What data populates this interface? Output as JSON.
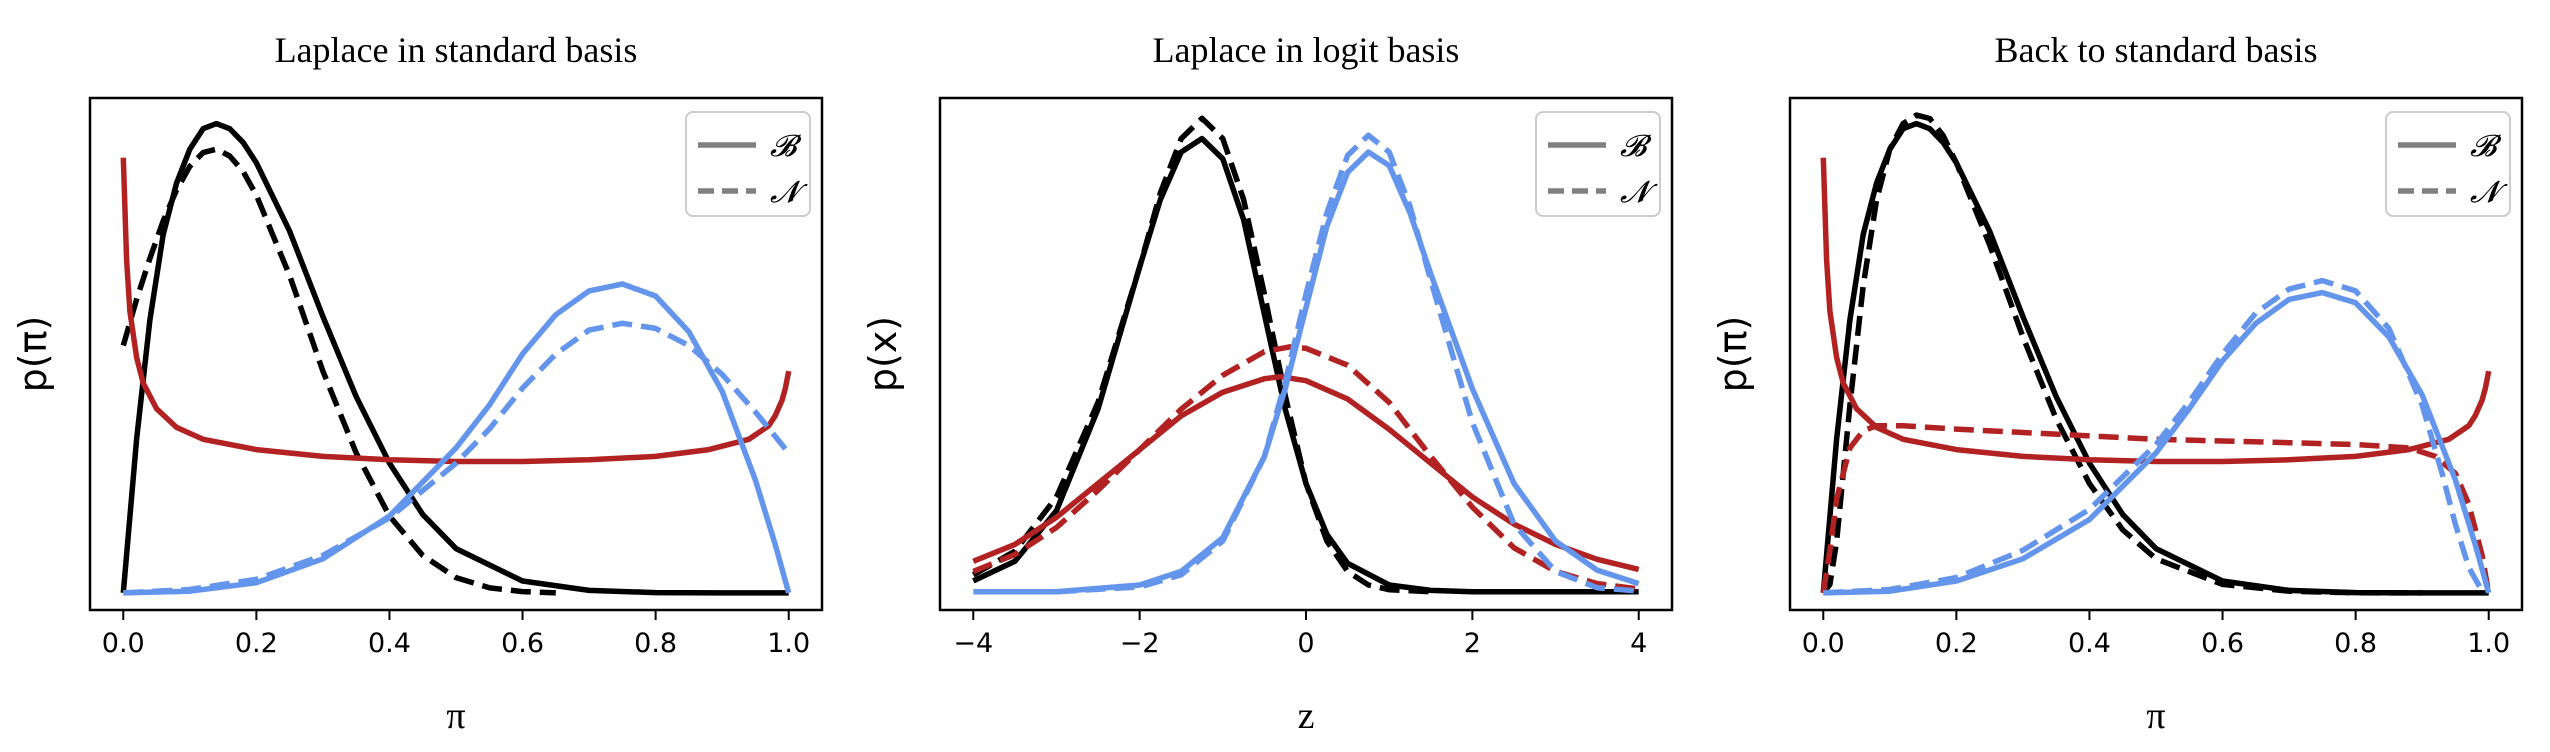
{
  "chart_data": [
    {
      "type": "line",
      "title": "Laplace in standard basis",
      "xlabel": "π",
      "ylabel": "p(π)",
      "xlim": [
        -0.05,
        1.05
      ],
      "ylim": [
        -0.1,
        2.9
      ],
      "xticks": [
        0.0,
        0.2,
        0.4,
        0.6,
        0.8,
        1.0
      ],
      "xtick_labels": [
        "0.0",
        "0.2",
        "0.4",
        "0.6",
        "0.8",
        "1.0"
      ],
      "show_yticks": false,
      "grid": false,
      "legend": {
        "placement": "top-right",
        "entries": [
          {
            "label": "𝓑",
            "style": "solid"
          },
          {
            "label": "𝓝",
            "style": "dashed"
          }
        ]
      },
      "series": [
        {
          "color": "#000000",
          "style": "solid",
          "x": [
            0.0,
            0.02,
            0.04,
            0.06,
            0.08,
            0.1,
            0.12,
            0.14,
            0.16,
            0.18,
            0.2,
            0.25,
            0.3,
            0.35,
            0.4,
            0.45,
            0.5,
            0.6,
            0.7,
            0.8,
            0.9,
            1.0
          ],
          "y": [
            0.0,
            0.9,
            1.6,
            2.1,
            2.4,
            2.6,
            2.72,
            2.75,
            2.72,
            2.64,
            2.52,
            2.12,
            1.62,
            1.15,
            0.76,
            0.46,
            0.26,
            0.07,
            0.015,
            0.002,
            0.0,
            0.0
          ]
        },
        {
          "color": "#000000",
          "style": "dashed",
          "x": [
            0.0,
            0.02,
            0.04,
            0.06,
            0.08,
            0.1,
            0.12,
            0.14,
            0.16,
            0.18,
            0.2,
            0.25,
            0.3,
            0.35,
            0.4,
            0.45,
            0.5,
            0.55,
            0.6,
            0.65
          ],
          "y": [
            1.45,
            1.72,
            1.96,
            2.18,
            2.36,
            2.5,
            2.58,
            2.6,
            2.56,
            2.47,
            2.33,
            1.86,
            1.3,
            0.82,
            0.45,
            0.22,
            0.09,
            0.03,
            0.008,
            0.0
          ]
        },
        {
          "color": "#B22222",
          "style": "solid",
          "x": [
            0.0,
            0.005,
            0.01,
            0.02,
            0.03,
            0.05,
            0.08,
            0.12,
            0.2,
            0.3,
            0.4,
            0.5,
            0.6,
            0.7,
            0.8,
            0.88,
            0.94,
            0.97,
            0.98,
            0.99,
            0.995,
            1.0
          ],
          "y": [
            2.55,
            1.95,
            1.65,
            1.38,
            1.23,
            1.08,
            0.97,
            0.9,
            0.84,
            0.8,
            0.78,
            0.77,
            0.77,
            0.78,
            0.8,
            0.84,
            0.9,
            0.98,
            1.04,
            1.13,
            1.2,
            1.3
          ]
        },
        {
          "color": "#6495ED",
          "style": "solid",
          "x": [
            0.0,
            0.1,
            0.2,
            0.3,
            0.4,
            0.5,
            0.55,
            0.6,
            0.65,
            0.7,
            0.75,
            0.8,
            0.85,
            0.9,
            0.95,
            0.98,
            1.0
          ],
          "y": [
            0.0,
            0.01,
            0.06,
            0.2,
            0.45,
            0.85,
            1.1,
            1.4,
            1.63,
            1.77,
            1.81,
            1.74,
            1.53,
            1.18,
            0.66,
            0.28,
            0.0
          ]
        },
        {
          "color": "#6495ED",
          "style": "dashed",
          "x": [
            0.0,
            0.1,
            0.2,
            0.3,
            0.4,
            0.5,
            0.55,
            0.6,
            0.65,
            0.7,
            0.75,
            0.8,
            0.85,
            0.9,
            0.95,
            1.0
          ],
          "y": [
            0.0,
            0.02,
            0.08,
            0.22,
            0.44,
            0.76,
            0.96,
            1.2,
            1.4,
            1.54,
            1.58,
            1.55,
            1.45,
            1.28,
            1.06,
            0.82
          ]
        }
      ]
    },
    {
      "type": "line",
      "title": "Laplace in logit basis",
      "xlabel": "z",
      "ylabel": "p(x)",
      "xlim": [
        -4.4,
        4.4
      ],
      "ylim": [
        -0.027,
        0.73
      ],
      "xticks": [
        -4,
        -2,
        0,
        2,
        4
      ],
      "xtick_labels": [
        "−4",
        "−2",
        "0",
        "2",
        "4"
      ],
      "show_yticks": false,
      "grid": false,
      "legend": {
        "placement": "top-right",
        "entries": [
          {
            "label": "𝓑",
            "style": "solid"
          },
          {
            "label": "𝓝",
            "style": "dashed"
          }
        ]
      },
      "series": [
        {
          "color": "#000000",
          "style": "solid",
          "x": [
            -4.0,
            -3.5,
            -3.0,
            -2.5,
            -2.0,
            -1.75,
            -1.5,
            -1.25,
            -1.0,
            -0.75,
            -0.5,
            -0.25,
            0.0,
            0.25,
            0.5,
            1.0,
            1.5,
            2.0,
            3.0,
            4.0
          ],
          "y": [
            0.016,
            0.045,
            0.12,
            0.27,
            0.48,
            0.58,
            0.65,
            0.67,
            0.64,
            0.55,
            0.41,
            0.27,
            0.16,
            0.085,
            0.042,
            0.01,
            0.002,
            0.0,
            0.0,
            0.0
          ]
        },
        {
          "color": "#000000",
          "style": "dashed",
          "x": [
            -4.0,
            -3.5,
            -3.0,
            -2.5,
            -2.0,
            -1.75,
            -1.5,
            -1.25,
            -1.0,
            -0.75,
            -0.5,
            -0.25,
            0.0,
            0.25,
            0.5,
            0.75,
            1.0,
            1.5
          ],
          "y": [
            0.025,
            0.06,
            0.14,
            0.28,
            0.48,
            0.59,
            0.67,
            0.7,
            0.67,
            0.58,
            0.44,
            0.29,
            0.16,
            0.075,
            0.03,
            0.01,
            0.003,
            0.0
          ]
        },
        {
          "color": "#B22222",
          "style": "solid",
          "x": [
            -4.0,
            -3.5,
            -3.0,
            -2.5,
            -2.0,
            -1.5,
            -1.0,
            -0.5,
            -0.3,
            0.0,
            0.5,
            1.0,
            1.5,
            2.0,
            2.5,
            3.0,
            3.5,
            4.0
          ],
          "y": [
            0.045,
            0.07,
            0.11,
            0.16,
            0.21,
            0.26,
            0.295,
            0.315,
            0.318,
            0.312,
            0.285,
            0.24,
            0.19,
            0.14,
            0.1,
            0.07,
            0.048,
            0.033
          ]
        },
        {
          "color": "#B22222",
          "style": "dashed",
          "x": [
            -4.0,
            -3.5,
            -3.0,
            -2.5,
            -2.0,
            -1.5,
            -1.0,
            -0.5,
            -0.2,
            0.0,
            0.5,
            1.0,
            1.5,
            2.0,
            2.5,
            3.0,
            3.5,
            4.0
          ],
          "y": [
            0.03,
            0.055,
            0.095,
            0.15,
            0.21,
            0.27,
            0.32,
            0.355,
            0.362,
            0.36,
            0.335,
            0.28,
            0.2,
            0.125,
            0.065,
            0.03,
            0.012,
            0.004
          ]
        },
        {
          "color": "#6495ED",
          "style": "solid",
          "x": [
            -4.0,
            -3.0,
            -2.0,
            -1.5,
            -1.0,
            -0.5,
            -0.25,
            0.0,
            0.25,
            0.5,
            0.75,
            1.0,
            1.25,
            1.5,
            2.0,
            2.5,
            3.0,
            3.5,
            4.0
          ],
          "y": [
            0.0,
            0.0,
            0.01,
            0.03,
            0.08,
            0.2,
            0.3,
            0.42,
            0.54,
            0.62,
            0.65,
            0.63,
            0.56,
            0.47,
            0.3,
            0.16,
            0.075,
            0.032,
            0.012
          ]
        },
        {
          "color": "#6495ED",
          "style": "dashed",
          "x": [
            -3.0,
            -2.0,
            -1.5,
            -1.0,
            -0.5,
            -0.25,
            0.0,
            0.25,
            0.5,
            0.75,
            1.0,
            1.25,
            1.5,
            2.0,
            2.5,
            3.0,
            3.5,
            4.0
          ],
          "y": [
            0.0,
            0.007,
            0.025,
            0.075,
            0.2,
            0.31,
            0.44,
            0.56,
            0.645,
            0.675,
            0.65,
            0.57,
            0.46,
            0.25,
            0.1,
            0.03,
            0.006,
            0.001
          ]
        }
      ]
    },
    {
      "type": "line",
      "title": "Back to standard basis",
      "xlabel": "π",
      "ylabel": "p(π)",
      "xlim": [
        -0.05,
        1.05
      ],
      "ylim": [
        -0.1,
        2.9
      ],
      "xticks": [
        0.0,
        0.2,
        0.4,
        0.6,
        0.8,
        1.0
      ],
      "xtick_labels": [
        "0.0",
        "0.2",
        "0.4",
        "0.6",
        "0.8",
        "1.0"
      ],
      "show_yticks": false,
      "grid": false,
      "legend": {
        "placement": "top-right",
        "entries": [
          {
            "label": "𝓑",
            "style": "solid"
          },
          {
            "label": "𝓝",
            "style": "dashed"
          }
        ]
      },
      "series": [
        {
          "color": "#000000",
          "style": "solid",
          "x": [
            0.0,
            0.02,
            0.04,
            0.06,
            0.08,
            0.1,
            0.12,
            0.14,
            0.16,
            0.18,
            0.2,
            0.25,
            0.3,
            0.35,
            0.4,
            0.45,
            0.5,
            0.6,
            0.7,
            0.8,
            0.9,
            1.0
          ],
          "y": [
            0.0,
            0.9,
            1.6,
            2.1,
            2.4,
            2.6,
            2.72,
            2.75,
            2.72,
            2.64,
            2.52,
            2.12,
            1.62,
            1.15,
            0.76,
            0.46,
            0.26,
            0.07,
            0.015,
            0.002,
            0.0,
            0.0
          ]
        },
        {
          "color": "#000000",
          "style": "dashed",
          "x": [
            0.0,
            0.01,
            0.02,
            0.04,
            0.06,
            0.08,
            0.1,
            0.12,
            0.14,
            0.16,
            0.18,
            0.2,
            0.25,
            0.3,
            0.35,
            0.4,
            0.45,
            0.5,
            0.6,
            0.7,
            0.8,
            0.9
          ],
          "y": [
            0.0,
            0.05,
            0.3,
            1.1,
            1.8,
            2.3,
            2.6,
            2.75,
            2.8,
            2.78,
            2.68,
            2.52,
            2.04,
            1.5,
            1.02,
            0.64,
            0.37,
            0.2,
            0.05,
            0.01,
            0.001,
            0.0
          ]
        },
        {
          "color": "#B22222",
          "style": "solid",
          "x": [
            0.0,
            0.005,
            0.01,
            0.02,
            0.03,
            0.05,
            0.08,
            0.12,
            0.2,
            0.3,
            0.4,
            0.5,
            0.6,
            0.7,
            0.8,
            0.88,
            0.94,
            0.97,
            0.98,
            0.99,
            0.995,
            1.0
          ],
          "y": [
            2.55,
            1.95,
            1.65,
            1.38,
            1.23,
            1.08,
            0.97,
            0.9,
            0.84,
            0.8,
            0.78,
            0.77,
            0.77,
            0.78,
            0.8,
            0.84,
            0.9,
            0.98,
            1.04,
            1.13,
            1.2,
            1.3
          ]
        },
        {
          "color": "#B22222",
          "style": "dashed",
          "x": [
            0.0,
            0.01,
            0.02,
            0.04,
            0.06,
            0.08,
            0.12,
            0.2,
            0.3,
            0.4,
            0.5,
            0.6,
            0.7,
            0.8,
            0.88,
            0.92,
            0.95,
            0.97,
            0.99,
            1.0
          ],
          "y": [
            0.0,
            0.25,
            0.55,
            0.85,
            0.95,
            0.98,
            0.98,
            0.96,
            0.94,
            0.92,
            0.9,
            0.89,
            0.88,
            0.87,
            0.85,
            0.8,
            0.7,
            0.52,
            0.22,
            0.0
          ]
        },
        {
          "color": "#6495ED",
          "style": "solid",
          "x": [
            0.0,
            0.1,
            0.2,
            0.3,
            0.4,
            0.5,
            0.55,
            0.6,
            0.65,
            0.7,
            0.75,
            0.8,
            0.85,
            0.9,
            0.95,
            0.98,
            1.0
          ],
          "y": [
            0.0,
            0.01,
            0.07,
            0.2,
            0.43,
            0.82,
            1.08,
            1.36,
            1.58,
            1.72,
            1.76,
            1.7,
            1.5,
            1.16,
            0.66,
            0.28,
            0.0
          ]
        },
        {
          "color": "#6495ED",
          "style": "dashed",
          "x": [
            0.0,
            0.1,
            0.2,
            0.3,
            0.4,
            0.5,
            0.55,
            0.6,
            0.65,
            0.7,
            0.75,
            0.8,
            0.85,
            0.9,
            0.93,
            0.95,
            0.97,
            0.99
          ],
          "y": [
            0.0,
            0.02,
            0.09,
            0.25,
            0.49,
            0.87,
            1.12,
            1.4,
            1.64,
            1.78,
            1.83,
            1.77,
            1.55,
            1.1,
            0.7,
            0.4,
            0.15,
            0.01
          ]
        }
      ]
    }
  ]
}
